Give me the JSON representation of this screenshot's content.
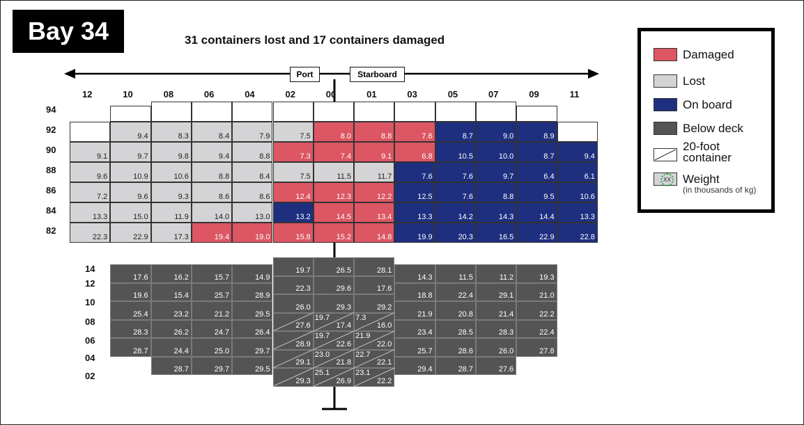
{
  "bay_label": "Bay 34",
  "title": "31 containers lost and 17 containers damaged",
  "port_label": "Port",
  "starboard_label": "Starboard",
  "colors": {
    "damaged": "#dc5663",
    "lost": "#d4d4d6",
    "on_board": "#1e2f80",
    "below_deck": "#545454",
    "weight_dot": "#2aa84a"
  },
  "legend": {
    "damaged": "Damaged",
    "lost": "Lost",
    "on_board": "On board",
    "below_deck": "Below deck",
    "twenty_foot": "20-foot container",
    "weight": "Weight",
    "weight_sub": "(in thousands of kg)",
    "weight_icon_text": "XX"
  },
  "columns": [
    "12",
    "10",
    "08",
    "06",
    "04",
    "02",
    "00",
    "01",
    "03",
    "05",
    "07",
    "09",
    "11"
  ],
  "deck_rows": [
    "94",
    "92",
    "90",
    "88",
    "86",
    "84",
    "82"
  ],
  "hold_rows": [
    "14",
    "12",
    "10",
    "08",
    "06",
    "04",
    "02"
  ],
  "deck": {
    "tier94": [
      {
        "col": 1,
        "status": "empty",
        "weight": ""
      },
      {
        "col": 2,
        "status": "empty",
        "weight": ""
      },
      {
        "col": 3,
        "status": "empty",
        "weight": ""
      },
      {
        "col": 4,
        "status": "empty",
        "weight": ""
      },
      {
        "col": 5,
        "status": "empty",
        "weight": ""
      },
      {
        "col": 6,
        "status": "empty",
        "weight": ""
      },
      {
        "col": 7,
        "status": "empty",
        "weight": ""
      },
      {
        "col": 8,
        "status": "empty",
        "weight": ""
      },
      {
        "col": 9,
        "status": "empty",
        "weight": ""
      },
      {
        "col": 10,
        "status": "empty",
        "weight": ""
      },
      {
        "col": 11,
        "status": "empty",
        "weight": ""
      }
    ],
    "tiers": [
      {
        "row": "92",
        "cells": [
          {
            "status": "empty",
            "weight": ""
          },
          {
            "status": "lost",
            "weight": "9.4"
          },
          {
            "status": "lost",
            "weight": "8.3"
          },
          {
            "status": "lost",
            "weight": "8.4"
          },
          {
            "status": "lost",
            "weight": "7.9"
          },
          {
            "status": "lost",
            "weight": "7.5"
          },
          {
            "status": "damaged",
            "weight": ""
          },
          {
            "status": "damaged",
            "weight": "8.8"
          },
          {
            "status": "damaged",
            "weight": "7.6"
          },
          {
            "status": "onboard",
            "weight": "8.7"
          },
          {
            "status": "onboard",
            "weight": "9.0"
          },
          {
            "status": "onboard",
            "weight": "8.9"
          },
          {
            "status": "empty",
            "weight": ""
          }
        ]
      },
      {
        "row": "90",
        "cells": [
          {
            "status": "lost",
            "weight": "9.1"
          },
          {
            "status": "lost",
            "weight": "9.7"
          },
          {
            "status": "lost",
            "weight": "9.8"
          },
          {
            "status": "lost",
            "weight": "9.4"
          },
          {
            "status": "lost",
            "weight": "8.8"
          },
          {
            "status": "damaged",
            "weight": "7.3"
          },
          {
            "status": "damaged",
            "weight": "7.4"
          },
          {
            "status": "damaged",
            "weight": "9.1"
          },
          {
            "status": "damaged",
            "weight": "6.8"
          },
          {
            "status": "onboard",
            "weight": "10.5"
          },
          {
            "status": "onboard",
            "weight": "10.0"
          },
          {
            "status": "onboard",
            "weight": "8.7"
          },
          {
            "status": "onboard",
            "weight": "9.4"
          }
        ]
      },
      {
        "row": "88",
        "cells": [
          {
            "status": "lost",
            "weight": "9.6"
          },
          {
            "status": "lost",
            "weight": "10.9"
          },
          {
            "status": "lost",
            "weight": "10.6"
          },
          {
            "status": "lost",
            "weight": "8.8"
          },
          {
            "status": "lost",
            "weight": "8.4"
          },
          {
            "status": "lost",
            "weight": "7.5"
          },
          {
            "status": "lost",
            "weight": "11.5"
          },
          {
            "status": "lost",
            "weight": "11.7"
          },
          {
            "status": "onboard",
            "weight": "7.6"
          },
          {
            "status": "onboard",
            "weight": "7.6"
          },
          {
            "status": "onboard",
            "weight": "9.7"
          },
          {
            "status": "onboard",
            "weight": "6.4"
          },
          {
            "status": "onboard",
            "weight": "6.1"
          }
        ]
      },
      {
        "row": "86",
        "cells": [
          {
            "status": "lost",
            "weight": "7.2"
          },
          {
            "status": "lost",
            "weight": "9.6"
          },
          {
            "status": "lost",
            "weight": "9.3"
          },
          {
            "status": "lost",
            "weight": "8.6"
          },
          {
            "status": "lost",
            "weight": "8.6"
          },
          {
            "status": "damaged",
            "weight": "12.4"
          },
          {
            "status": "damaged",
            "weight": "12.3"
          },
          {
            "status": "damaged",
            "weight": "12.2"
          },
          {
            "status": "onboard",
            "weight": "12.5"
          },
          {
            "status": "onboard",
            "weight": "7.6"
          },
          {
            "status": "onboard",
            "weight": "8.8"
          },
          {
            "status": "onboard",
            "weight": "9.5"
          },
          {
            "status": "onboard",
            "weight": "10.6"
          }
        ]
      },
      {
        "row": "84",
        "cells": [
          {
            "status": "lost",
            "weight": "13.3"
          },
          {
            "status": "lost",
            "weight": "15.0"
          },
          {
            "status": "lost",
            "weight": "11.9"
          },
          {
            "status": "lost",
            "weight": "14.0"
          },
          {
            "status": "lost",
            "weight": "13.0"
          },
          {
            "status": "onboard",
            "weight": "13.2"
          },
          {
            "status": "damaged",
            "weight": "14.5"
          },
          {
            "status": "damaged",
            "weight": "13.4"
          },
          {
            "status": "onboard",
            "weight": "13.3"
          },
          {
            "status": "onboard",
            "weight": "14.2"
          },
          {
            "status": "onboard",
            "weight": "14.3"
          },
          {
            "status": "onboard",
            "weight": "14.4"
          },
          {
            "status": "onboard",
            "weight": "13.3"
          }
        ]
      },
      {
        "row": "82",
        "cells": [
          {
            "status": "lost",
            "weight": "22.3"
          },
          {
            "status": "lost",
            "weight": "22.9"
          },
          {
            "status": "lost",
            "weight": "17.3"
          },
          {
            "status": "damaged",
            "weight": "19.4"
          },
          {
            "status": "damaged",
            "weight": "19.0"
          },
          {
            "status": "damaged",
            "weight": "15.8"
          },
          {
            "status": "damaged",
            "weight": "15.2"
          },
          {
            "status": "damaged",
            "weight": "14.8"
          },
          {
            "status": "onboard",
            "weight": "19.9"
          },
          {
            "status": "onboard",
            "weight": "20.3"
          },
          {
            "status": "onboard",
            "weight": "16.5"
          },
          {
            "status": "onboard",
            "weight": "22.9"
          },
          {
            "status": "onboard",
            "weight": "22.8"
          }
        ]
      }
    ],
    "tier92_center_value": "8.0"
  },
  "hold": {
    "sides": [
      {
        "col": 1,
        "weights": [
          "17.6",
          "19.6",
          "25.4",
          "28.3",
          "28.7"
        ]
      },
      {
        "col": 2,
        "weights": [
          "16.2",
          "15.4",
          "23.2",
          "26.2",
          "24.4",
          "28.7"
        ]
      },
      {
        "col": 3,
        "weights": [
          "15.7",
          "25.7",
          "21.2",
          "24.7",
          "25.0",
          "29.7"
        ]
      },
      {
        "col": 4,
        "weights": [
          "14.9",
          "28.9",
          "29.5",
          "26.4",
          "29.7",
          "29.5"
        ]
      },
      {
        "col": 8,
        "weights": [
          "14.3",
          "18.8",
          "21.9",
          "23.4",
          "25.7",
          "29.4"
        ]
      },
      {
        "col": 9,
        "weights": [
          "11.5",
          "22.4",
          "20.8",
          "28.5",
          "28.6",
          "28.7"
        ]
      },
      {
        "col": 10,
        "weights": [
          "11.2",
          "29.1",
          "21.4",
          "28.3",
          "26.0",
          "27.6"
        ]
      },
      {
        "col": 11,
        "weights": [
          "19.3",
          "21.0",
          "22.2",
          "22.4",
          "27.8"
        ]
      }
    ],
    "center": [
      {
        "col": 5,
        "weights": [
          "19.7",
          "22.3",
          "26.0",
          "27.6",
          "28.9",
          "29.1",
          "29.3"
        ]
      },
      {
        "col": 6,
        "weights": [
          "26.5",
          "29.6",
          "29.3",
          "17.4",
          "22.6",
          "21.8",
          "26.9"
        ]
      },
      {
        "col": 7,
        "weights": [
          "28.1",
          "17.6",
          "29.2",
          "16.0",
          "22.0",
          "22.1",
          "22.2"
        ]
      }
    ],
    "twenty_foot_tops": [
      {
        "col": 5,
        "weights": [
          "19.7",
          "19.7",
          "23.0",
          "25.1"
        ]
      },
      {
        "col": 6,
        "weights": [
          "7.3",
          "21.9",
          "22.7",
          "23.1"
        ]
      }
    ]
  }
}
